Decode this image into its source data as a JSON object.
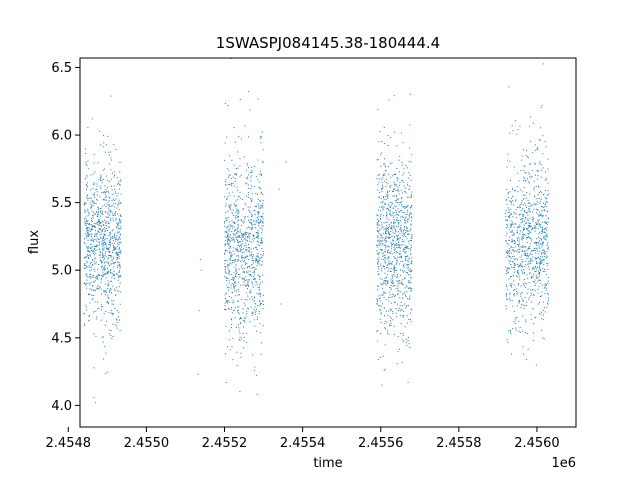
{
  "chart_data": {
    "type": "scatter",
    "title": "1SWASPJ084145.38-180444.4",
    "xlabel": "time",
    "ylabel": "flux",
    "x_offset_label": "1e6",
    "xlim": [
      2454830,
      2456100
    ],
    "ylim": [
      3.84,
      6.57
    ],
    "x_ticks": [
      2454800,
      2455000,
      2455200,
      2455400,
      2455600,
      2455800,
      2456000
    ],
    "x_tick_labels": [
      "2.4548",
      "2.4550",
      "2.4552",
      "2.4554",
      "2.4556",
      "2.4558",
      "2.4560"
    ],
    "y_ticks": [
      4.0,
      4.5,
      5.0,
      5.5,
      6.0,
      6.5
    ],
    "y_tick_labels": [
      "4.0",
      "4.5",
      "5.0",
      "5.5",
      "6.0",
      "6.5"
    ],
    "marker_color": "#1f77b4",
    "grid": false,
    "observing_seasons": [
      {
        "x_start": 2454840,
        "x_end": 2454935,
        "flux_center": 5.2,
        "flux_low": 4.6,
        "flux_high": 5.8
      },
      {
        "x_start": 2455200,
        "x_end": 2455300,
        "flux_center": 5.15,
        "flux_low": 4.5,
        "flux_high": 5.9
      },
      {
        "x_start": 2455590,
        "x_end": 2455680,
        "flux_center": 5.2,
        "flux_low": 4.5,
        "flux_high": 5.9
      },
      {
        "x_start": 2455920,
        "x_end": 2456030,
        "flux_center": 5.2,
        "flux_low": 4.5,
        "flux_high": 5.8
      }
    ],
    "sparse_points": [
      {
        "x": 2455135,
        "y": 4.7
      },
      {
        "x": 2455138,
        "y": 5.08
      },
      {
        "x": 2455132,
        "y": 4.23
      },
      {
        "x": 2455140,
        "y": 5.0
      },
      {
        "x": 2455340,
        "y": 5.6
      },
      {
        "x": 2455345,
        "y": 4.75
      },
      {
        "x": 2455358,
        "y": 5.8
      },
      {
        "x": 2454870,
        "y": 4.02
      }
    ]
  }
}
